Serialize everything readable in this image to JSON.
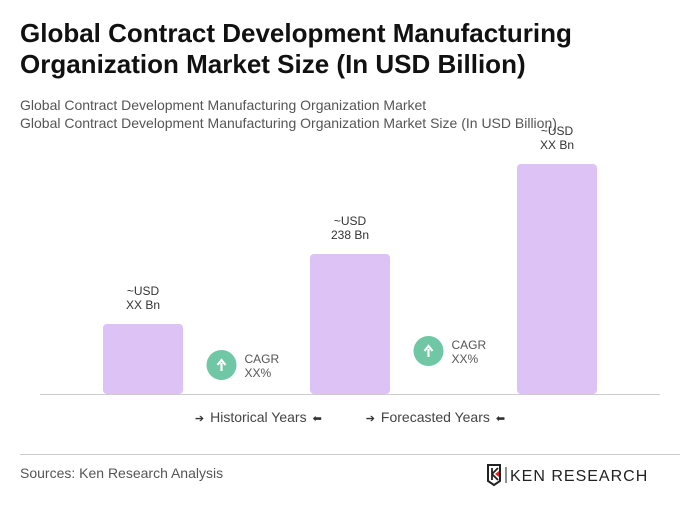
{
  "title": "Global Contract Development Manufacturing Organization Market Size (In USD Billion)",
  "subtitle_lines": [
    "Global Contract Development Manufacturing Organization Market",
    "Global Contract Development Manufacturing Organization Market Size (In USD Billion)"
  ],
  "chart_data": {
    "type": "bar",
    "categories": [
      "",
      "",
      ""
    ],
    "values": [
      119,
      238,
      391
    ],
    "data_labels": [
      [
        "~USD",
        "XX Bn"
      ],
      [
        "~USD",
        "238 Bn"
      ],
      [
        "~USD",
        "XX Bn"
      ]
    ],
    "bar_color": "#dcc2f5",
    "cagr_annotations": [
      {
        "label": "CAGR",
        "value": "XX%"
      },
      {
        "label": "CAGR",
        "value": "XX%"
      }
    ],
    "cagr_color": "#6fc7a5",
    "grid": false
  },
  "legend": {
    "historical": "Historical Years",
    "forecasted": "Forecasted Years"
  },
  "sources": "Sources: Ken Research Analysis",
  "logo_text": "KEN RESEARCH"
}
